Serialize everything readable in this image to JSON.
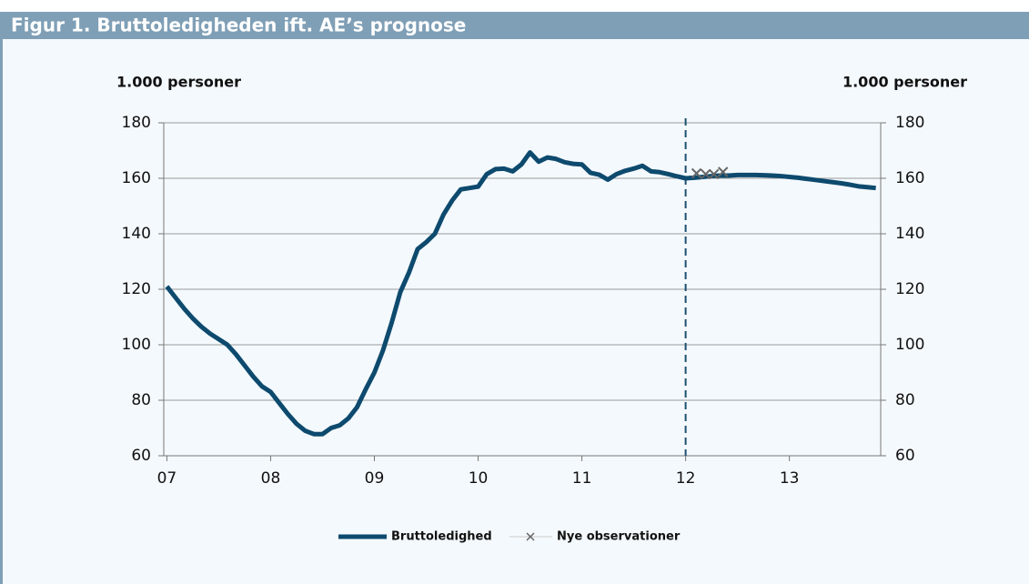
{
  "chart_data": {
    "type": "line",
    "title": "Figur 1. Bruttoledigheden ift. AE’s prognose",
    "ylabel": "1.000 personer",
    "y2label": "1.000 personer",
    "xlim": [
      2006.97,
      2013.88
    ],
    "xticks": [
      {
        "value": 2007,
        "label": "07"
      },
      {
        "value": 2008,
        "label": "08"
      },
      {
        "value": 2009,
        "label": "09"
      },
      {
        "value": 2010,
        "label": "10"
      },
      {
        "value": 2011,
        "label": "11"
      },
      {
        "value": 2012,
        "label": "12"
      },
      {
        "value": 2013,
        "label": "13"
      }
    ],
    "ylim": [
      60,
      180
    ],
    "yticks": [
      60,
      80,
      100,
      120,
      140,
      160,
      180
    ],
    "y2lim": [
      60,
      180
    ],
    "y2ticks": [
      60,
      80,
      100,
      120,
      140,
      160,
      180
    ],
    "grid": true,
    "vline": 2012,
    "series": [
      {
        "name": "Bruttoledighed",
        "color": "#0d4a6e",
        "x": [
          2007,
          2007.083,
          2007.167,
          2007.25,
          2007.333,
          2007.417,
          2007.5,
          2007.583,
          2007.667,
          2007.75,
          2007.833,
          2007.917,
          2008,
          2008.083,
          2008.167,
          2008.25,
          2008.333,
          2008.417,
          2008.5,
          2008.583,
          2008.667,
          2008.75,
          2008.833,
          2008.917,
          2009,
          2009.083,
          2009.167,
          2009.25,
          2009.333,
          2009.417,
          2009.5,
          2009.583,
          2009.667,
          2009.75,
          2009.833,
          2009.917,
          2010,
          2010.083,
          2010.167,
          2010.25,
          2010.333,
          2010.417,
          2010.5,
          2010.583,
          2010.667,
          2010.75,
          2010.833,
          2010.917,
          2011,
          2011.083,
          2011.167,
          2011.25,
          2011.333,
          2011.417,
          2011.5,
          2011.583,
          2011.667,
          2011.75,
          2011.833,
          2011.917,
          2012,
          2012.083,
          2012.167,
          2012.25,
          2012.333,
          2012.417,
          2012.5,
          2012.583,
          2012.667,
          2012.75,
          2012.833,
          2012.917,
          2013,
          2013.083,
          2013.167,
          2013.25,
          2013.333,
          2013.417,
          2013.5,
          2013.583,
          2013.667,
          2013.75,
          2013.833
        ],
        "values": [
          121,
          117,
          113,
          109.5,
          106.5,
          104,
          102,
          100,
          96.5,
          92.5,
          88.5,
          85,
          83,
          79,
          75,
          71.5,
          69,
          67.8,
          67.8,
          70,
          71,
          73.5,
          77.5,
          84,
          90,
          98,
          108,
          119,
          126,
          134.5,
          137,
          140,
          147,
          152,
          156,
          156.5,
          157,
          161.5,
          163.3,
          163.5,
          162.5,
          165,
          169.3,
          166,
          167.5,
          167,
          165.8,
          165.2,
          165,
          162,
          161.3,
          159.5,
          161.5,
          162.7,
          163.5,
          164.5,
          162.5,
          162.2,
          161.5,
          160.7,
          160,
          160.2,
          160.5,
          160.8,
          161,
          161,
          161.2,
          161.2,
          161.2,
          161.1,
          161,
          160.8,
          160.5,
          160.2,
          159.8,
          159.4,
          159,
          158.6,
          158.2,
          157.7,
          157.1,
          156.8,
          156.5
        ]
      },
      {
        "name": "Nye observationer",
        "color": "#666666",
        "marker": "x",
        "x": [
          2012.105,
          2012.193,
          2012.272,
          2012.36
        ],
        "values": [
          161.8,
          161.5,
          161.5,
          162.3
        ]
      }
    ]
  }
}
